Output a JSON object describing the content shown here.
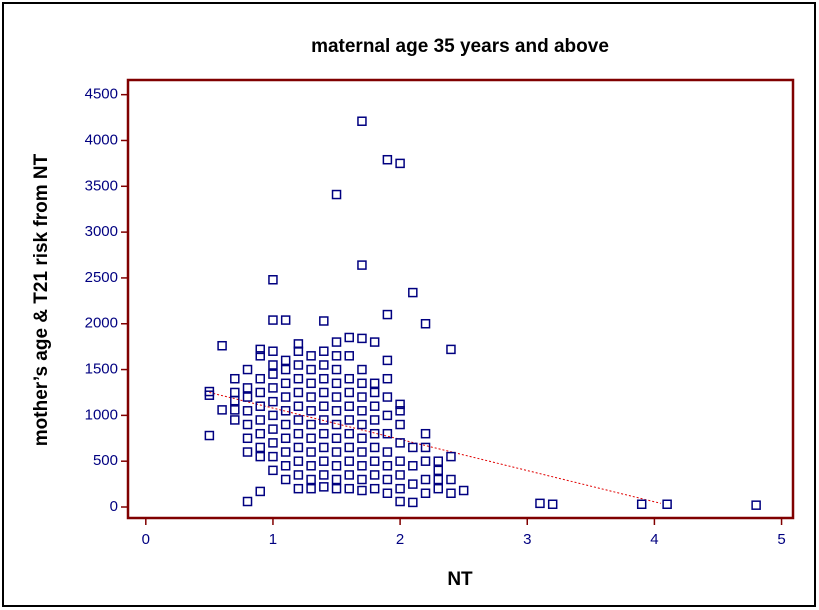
{
  "chart_data": {
    "type": "scatter",
    "title": "maternal age 35 years and above",
    "xlabel": "NT",
    "ylabel": "mother’s age & T21 risk from NT",
    "x": [
      0.5,
      0.5,
      0.5,
      0.6,
      0.6,
      0.7,
      0.7,
      0.7,
      0.7,
      0.7,
      0.8,
      0.8,
      0.8,
      0.8,
      0.8,
      0.8,
      0.8,
      0.8,
      0.9,
      0.9,
      0.9,
      0.9,
      0.9,
      0.9,
      0.9,
      0.9,
      0.9,
      0.9,
      1.0,
      1.0,
      1.0,
      1.0,
      1.0,
      1.0,
      1.0,
      1.0,
      1.0,
      1.0,
      1.0,
      1.0,
      1.1,
      1.1,
      1.1,
      1.1,
      1.1,
      1.1,
      1.1,
      1.1,
      1.1,
      1.1,
      1.1,
      1.2,
      1.2,
      1.2,
      1.2,
      1.2,
      1.2,
      1.2,
      1.2,
      1.2,
      1.2,
      1.2,
      1.2,
      1.3,
      1.3,
      1.3,
      1.3,
      1.3,
      1.3,
      1.3,
      1.3,
      1.3,
      1.3,
      1.3,
      1.4,
      1.4,
      1.4,
      1.4,
      1.4,
      1.4,
      1.4,
      1.4,
      1.4,
      1.4,
      1.4,
      1.4,
      1.5,
      1.5,
      1.5,
      1.5,
      1.5,
      1.5,
      1.5,
      1.5,
      1.5,
      1.5,
      1.5,
      1.5,
      1.5,
      1.6,
      1.6,
      1.6,
      1.6,
      1.6,
      1.6,
      1.6,
      1.6,
      1.6,
      1.6,
      1.6,
      1.7,
      1.7,
      1.7,
      1.7,
      1.7,
      1.7,
      1.7,
      1.7,
      1.7,
      1.7,
      1.7,
      1.7,
      1.7,
      1.8,
      1.8,
      1.8,
      1.8,
      1.8,
      1.8,
      1.8,
      1.8,
      1.8,
      1.8,
      1.9,
      1.9,
      1.9,
      1.9,
      1.9,
      1.9,
      1.9,
      1.9,
      1.9,
      1.9,
      1.9,
      2.0,
      2.0,
      2.0,
      2.0,
      2.0,
      2.0,
      2.0,
      2.0,
      2.0,
      2.1,
      2.1,
      2.1,
      2.1,
      2.1,
      2.2,
      2.2,
      2.2,
      2.2,
      2.2,
      2.2,
      2.3,
      2.3,
      2.3,
      2.3,
      2.4,
      2.4,
      2.4,
      2.4,
      2.5,
      3.1,
      3.2,
      3.9,
      4.1,
      4.8
    ],
    "values": [
      780,
      1220,
      1260,
      1060,
      1760,
      950,
      1060,
      1160,
      1250,
      1400,
      60,
      600,
      750,
      900,
      1050,
      1200,
      1300,
      1500,
      170,
      550,
      650,
      800,
      950,
      1100,
      1250,
      1400,
      1650,
      1720,
      400,
      550,
      700,
      850,
      1000,
      1150,
      1300,
      1450,
      1550,
      1700,
      2040,
      2480,
      300,
      450,
      600,
      750,
      900,
      1050,
      1200,
      1350,
      1500,
      1600,
      2040,
      200,
      350,
      500,
      650,
      800,
      950,
      1100,
      1250,
      1400,
      1550,
      1700,
      1780,
      200,
      300,
      450,
      600,
      750,
      900,
      1050,
      1200,
      1350,
      1500,
      1650,
      220,
      350,
      500,
      650,
      800,
      950,
      1100,
      1250,
      1400,
      1550,
      1700,
      2030,
      200,
      300,
      450,
      600,
      750,
      900,
      1050,
      1200,
      1350,
      1500,
      1650,
      1800,
      3410,
      200,
      350,
      500,
      650,
      800,
      950,
      1100,
      1250,
      1400,
      1650,
      1850,
      180,
      300,
      450,
      600,
      750,
      900,
      1050,
      1200,
      1350,
      1500,
      1840,
      2640,
      4210,
      200,
      350,
      500,
      650,
      800,
      950,
      1100,
      1250,
      1350,
      1800,
      150,
      300,
      450,
      600,
      800,
      1000,
      1200,
      1400,
      1600,
      2100,
      3790,
      60,
      200,
      350,
      500,
      700,
      900,
      1050,
      1120,
      3750,
      50,
      250,
      450,
      650,
      2340,
      150,
      300,
      500,
      650,
      800,
      2000,
      200,
      300,
      400,
      500,
      150,
      300,
      550,
      1720,
      180,
      40,
      30,
      30,
      30,
      20
    ],
    "color": "#000080",
    "trendline": {
      "x": [
        0.5,
        4.05
      ],
      "y": [
        1250,
        40
      ],
      "color": "#e00000"
    },
    "xlim": [
      -0.14,
      5.09
    ],
    "xticks": [
      0,
      1,
      2,
      3,
      4,
      5
    ],
    "ylim": [
      -120,
      4660
    ],
    "yticks": [
      0,
      500,
      1000,
      1500,
      2000,
      2500,
      3000,
      3500,
      4000,
      4500
    ]
  }
}
